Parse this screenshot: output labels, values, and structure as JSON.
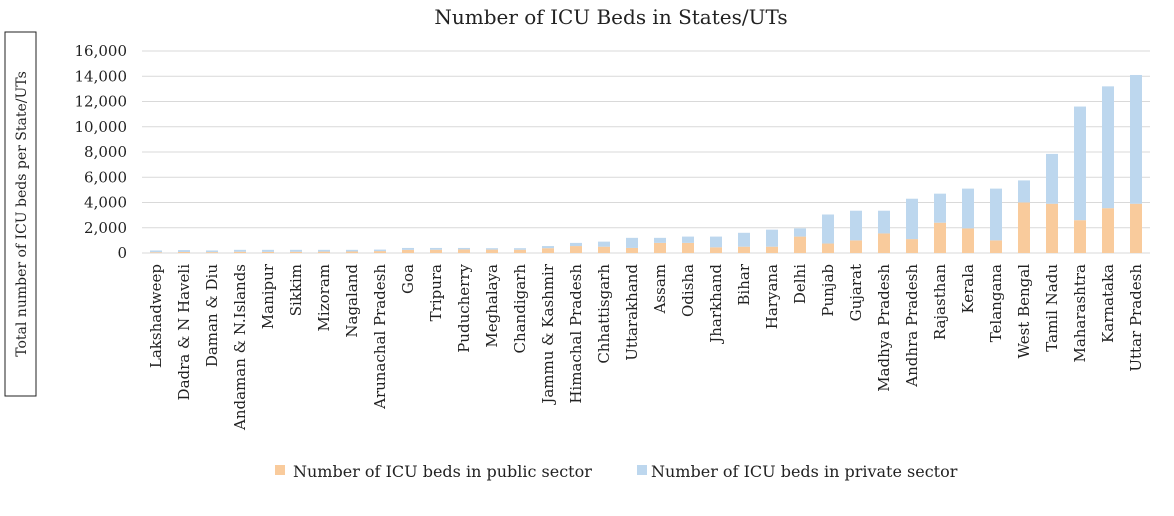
{
  "chart_data": {
    "type": "bar",
    "stacked": true,
    "title": "Number of ICU Beds in States/UTs",
    "ylabel": "Total number of ICU beds per State/UTs",
    "xlabel": "",
    "ylim": [
      0,
      16000
    ],
    "yticks": [
      "0",
      "2,000",
      "4,000",
      "6,000",
      "8,000",
      "10,000",
      "12,000",
      "14,000",
      "16,000"
    ],
    "ytick_values": [
      0,
      2000,
      4000,
      6000,
      8000,
      10000,
      12000,
      14000,
      16000
    ],
    "grid": true,
    "legend_position": "bottom",
    "categories": [
      "Lakshadweep",
      "Dadra & N Haveli",
      "Daman & Diu",
      "Andaman & N.Islands",
      "Manipur",
      "Sikkim",
      "Mizoram",
      "Nagaland",
      "Arunachal Pradesh",
      "Goa",
      "Tripura",
      "Puducherry",
      "Meghalaya",
      "Chandigarh",
      "Jammu & Kashmir",
      "Himachal Pradesh",
      "Chhattisgarh",
      "Uttarakhand",
      "Assam",
      "Odisha",
      "Jharkhand",
      "Bihar",
      "Haryana",
      "Delhi",
      "Punjab",
      "Gujarat",
      "Madhya Pradesh",
      "Andhra Pradesh",
      "Rajasthan",
      "Kerala",
      "Telangana",
      "West Bengal",
      "Tamil Nadu",
      "Maharashtra",
      "Karnataka",
      "Uttar Pradesh"
    ],
    "series": [
      {
        "name": "Number of ICU beds in public sector",
        "color": "#f9cb9c",
        "values": [
          60,
          80,
          70,
          100,
          90,
          100,
          110,
          120,
          150,
          250,
          260,
          280,
          270,
          260,
          380,
          550,
          500,
          400,
          800,
          800,
          450,
          500,
          500,
          1300,
          750,
          1000,
          1550,
          1100,
          2400,
          1950,
          1000,
          4000,
          3900,
          2600,
          3550,
          3900
        ]
      },
      {
        "name": "Number of ICU beds in private sector",
        "color": "#bdd7ee",
        "values": [
          140,
          150,
          130,
          150,
          160,
          150,
          140,
          130,
          120,
          150,
          140,
          120,
          110,
          120,
          170,
          250,
          400,
          800,
          400,
          500,
          850,
          1100,
          1350,
          650,
          2300,
          2350,
          1800,
          3200,
          2300,
          3150,
          4100,
          1750,
          3950,
          9000,
          9650,
          10200
        ]
      }
    ]
  }
}
